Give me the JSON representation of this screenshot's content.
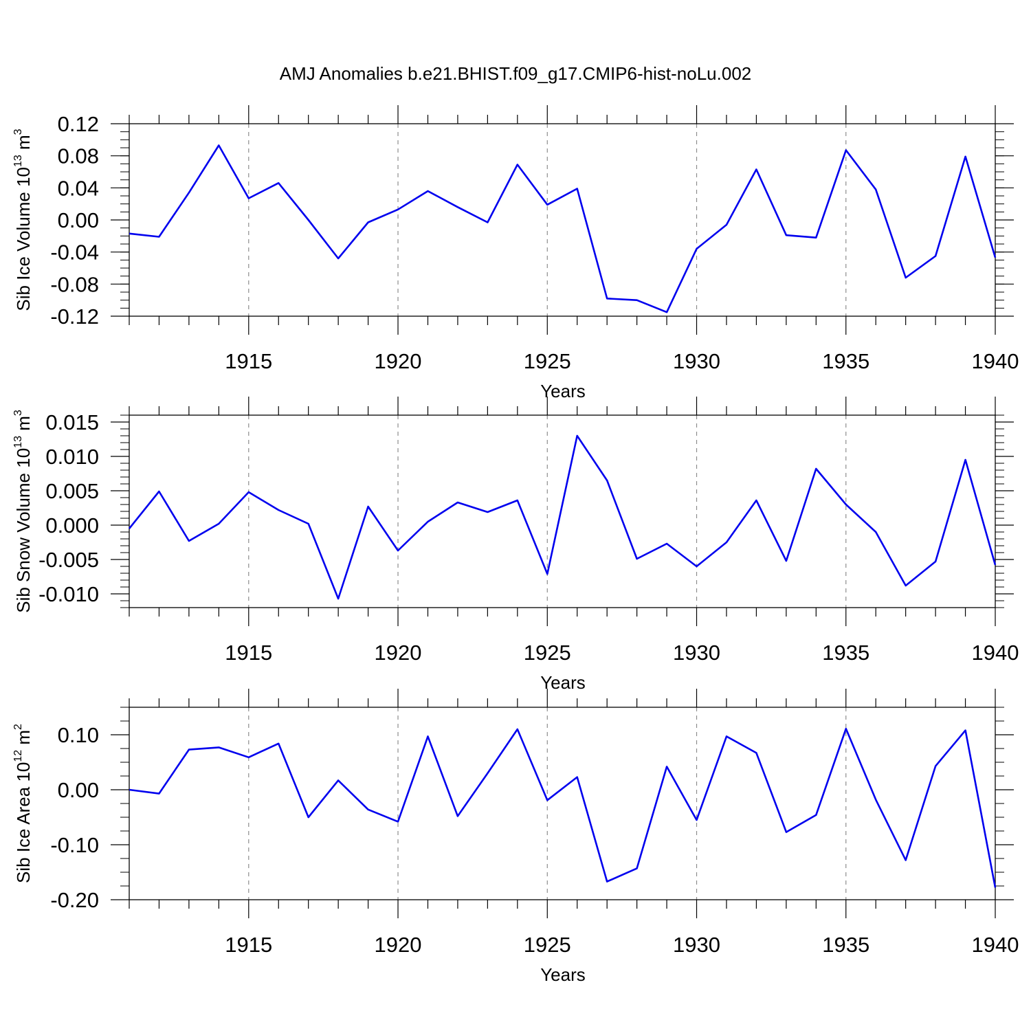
{
  "title": "AMJ Anomalies b.e21.BHIST.f09_g17.CMIP6-hist-noLu.002",
  "colors": {
    "series": "#0000ee",
    "axis": "#000000",
    "grid": "#8c8c8c"
  },
  "chart_data": [
    {
      "type": "line",
      "ylabel": {
        "main": "Sib Ice Volume 10",
        "exp": "13",
        "unit": " m",
        "unit_exp": "3"
      },
      "xlabel": "Years",
      "xlim": [
        1911,
        1940
      ],
      "ylim": [
        -0.12,
        0.12
      ],
      "grid": "x-dashed",
      "xticks": [
        "1915",
        "1920",
        "1925",
        "1930",
        "1935",
        "1940"
      ],
      "yticks": [
        "0.12",
        "0.08",
        "0.04",
        "0.00",
        "-0.04",
        "-0.08",
        "-0.12"
      ],
      "x": [
        1911,
        1912,
        1913,
        1914,
        1915,
        1916,
        1917,
        1918,
        1919,
        1920,
        1921,
        1922,
        1923,
        1924,
        1925,
        1926,
        1927,
        1928,
        1929,
        1930,
        1931,
        1932,
        1933,
        1934,
        1935,
        1936,
        1937,
        1938,
        1939,
        1940
      ],
      "values": [
        -0.017,
        -0.021,
        0.034,
        0.093,
        0.027,
        0.046,
        0.0,
        -0.048,
        -0.003,
        0.013,
        0.036,
        0.016,
        -0.003,
        0.069,
        0.019,
        0.039,
        -0.098,
        -0.1,
        -0.115,
        -0.036,
        -0.006,
        0.063,
        -0.019,
        -0.022,
        0.087,
        0.038,
        -0.072,
        -0.045,
        0.079,
        -0.047
      ]
    },
    {
      "type": "line",
      "ylabel": {
        "main": "Sib Snow Volume 10",
        "exp": "13",
        "unit": " m",
        "unit_exp": "3"
      },
      "xlabel": "Years",
      "xlim": [
        1911,
        1940
      ],
      "ylim": [
        -0.012,
        0.016
      ],
      "grid": "x-dashed",
      "xticks": [
        "1915",
        "1920",
        "1925",
        "1930",
        "1935",
        "1940"
      ],
      "yticks": [
        "0.015",
        "0.010",
        "0.005",
        "0.000",
        "-0.005",
        "-0.010"
      ],
      "x": [
        1911,
        1912,
        1913,
        1914,
        1915,
        1916,
        1917,
        1918,
        1919,
        1920,
        1921,
        1922,
        1923,
        1924,
        1925,
        1926,
        1927,
        1928,
        1929,
        1930,
        1931,
        1932,
        1933,
        1934,
        1935,
        1936,
        1937,
        1938,
        1939,
        1940
      ],
      "values": [
        -0.0005,
        0.0049,
        -0.0023,
        0.0002,
        0.0048,
        0.0022,
        0.0002,
        -0.0107,
        0.0027,
        -0.0037,
        0.0005,
        0.0033,
        0.0019,
        0.0036,
        -0.0071,
        0.013,
        0.0065,
        -0.0049,
        -0.0027,
        -0.006,
        -0.0025,
        0.0036,
        -0.0052,
        0.0082,
        0.003,
        -0.001,
        -0.0088,
        -0.0053,
        0.0095,
        -0.0058
      ]
    },
    {
      "type": "line",
      "ylabel": {
        "main": "Sib Ice Area 10",
        "exp": "12",
        "unit": " m",
        "unit_exp": "2"
      },
      "xlabel": "Years",
      "xlim": [
        1911,
        1940
      ],
      "ylim": [
        -0.2,
        0.15
      ],
      "grid": "x-dashed",
      "xticks": [
        "1915",
        "1920",
        "1925",
        "1930",
        "1935",
        "1940"
      ],
      "yticks": [
        "0.10",
        "0.00",
        "-0.10",
        "-0.20"
      ],
      "x": [
        1911,
        1912,
        1913,
        1914,
        1915,
        1916,
        1917,
        1918,
        1919,
        1920,
        1921,
        1922,
        1923,
        1924,
        1925,
        1926,
        1927,
        1928,
        1929,
        1930,
        1931,
        1932,
        1933,
        1934,
        1935,
        1936,
        1937,
        1938,
        1939,
        1940
      ],
      "values": [
        0.0,
        -0.007,
        0.073,
        0.077,
        0.059,
        0.084,
        -0.05,
        0.017,
        -0.036,
        -0.058,
        0.097,
        -0.048,
        0.03,
        0.11,
        -0.019,
        0.023,
        -0.167,
        -0.143,
        0.042,
        -0.055,
        0.097,
        0.067,
        -0.077,
        -0.046,
        0.111,
        -0.018,
        -0.128,
        0.043,
        0.108,
        -0.178
      ]
    }
  ]
}
